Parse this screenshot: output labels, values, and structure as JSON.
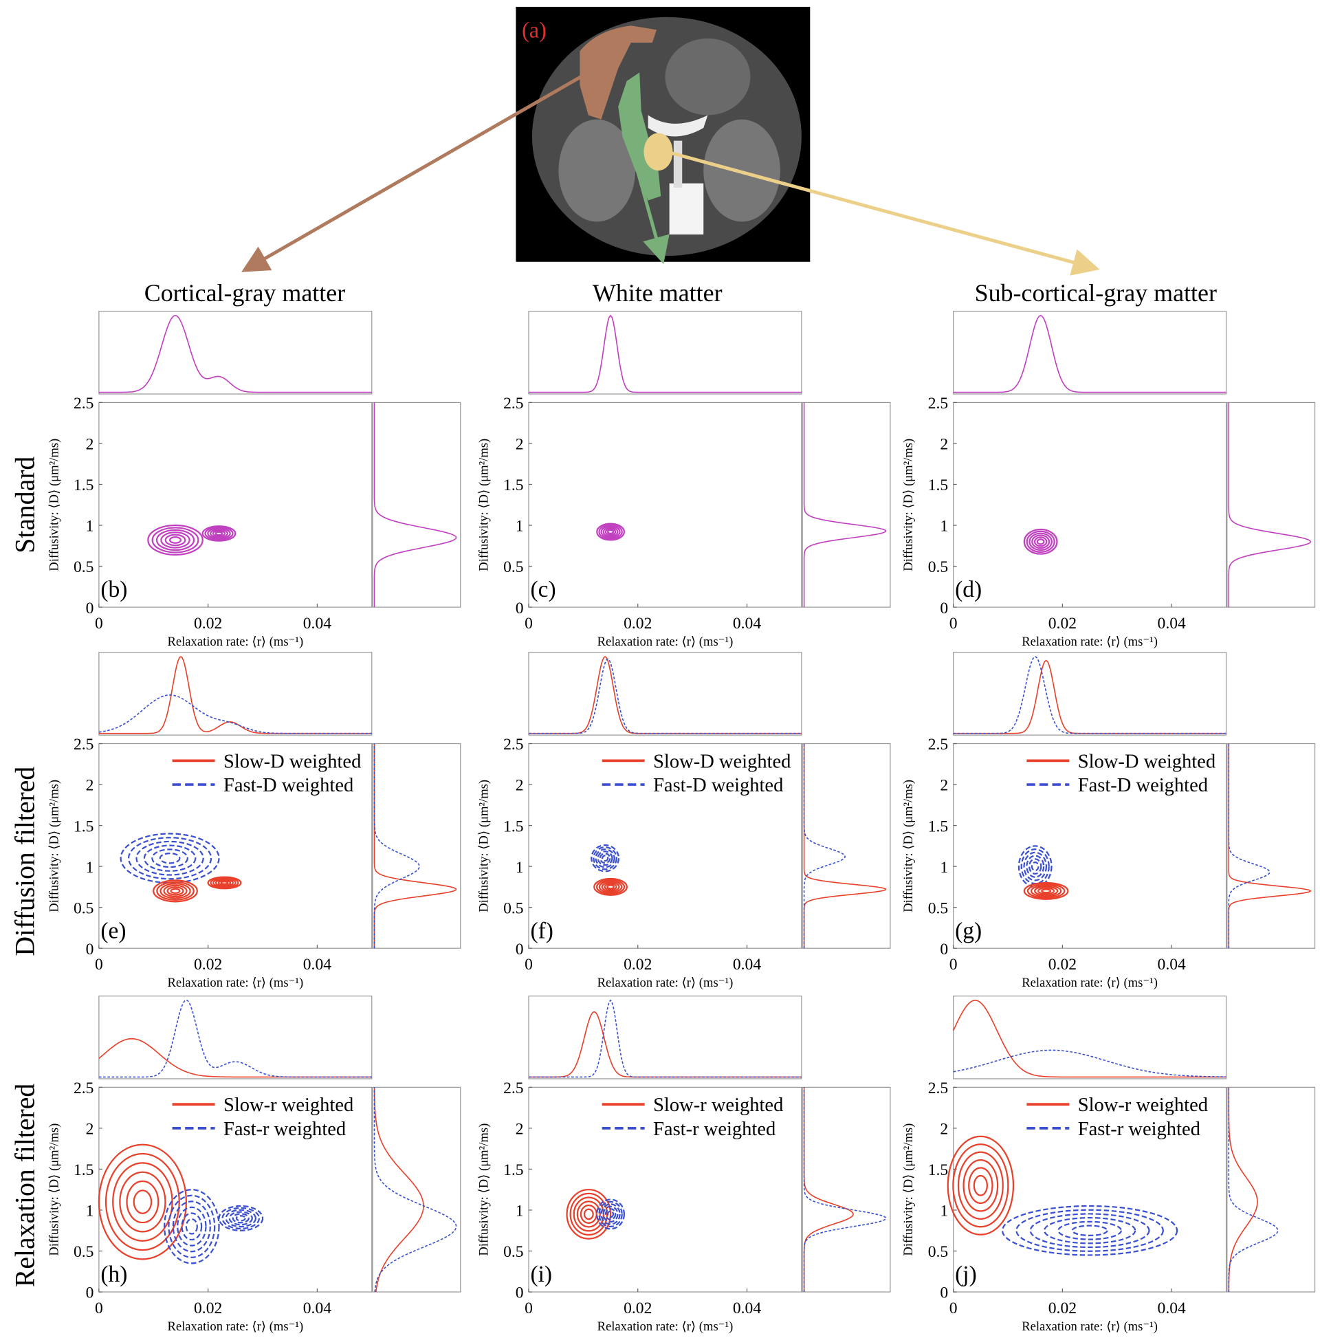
{
  "image_label": "(a)",
  "columns": [
    "Cortical-gray matter",
    "White matter",
    "Sub-cortical-gray matter"
  ],
  "rows": [
    "Standard",
    "Diffusion filtered",
    "Relaxation filtered"
  ],
  "panels": [
    "(b)",
    "(c)",
    "(d)",
    "(e)",
    "(f)",
    "(g)",
    "(h)",
    "(i)",
    "(j)"
  ],
  "axes": {
    "xlabel": "Relaxation rate: ⟨r⟩ (ms⁻¹)",
    "ylabel": "Diffusivity: ⟨D⟩ (μm²/ms)",
    "xlim": [
      0,
      0.05
    ],
    "ylim": [
      0,
      2.5
    ],
    "xticks": [
      0,
      0.02,
      0.04
    ],
    "yticks": [
      0,
      0.5,
      1,
      1.5,
      2,
      2.5
    ]
  },
  "legends": {
    "diffusion": [
      "Slow-D weighted",
      "Fast-D weighted"
    ],
    "relaxation": [
      "Slow-r weighted",
      "Fast-r weighted"
    ]
  }
}
